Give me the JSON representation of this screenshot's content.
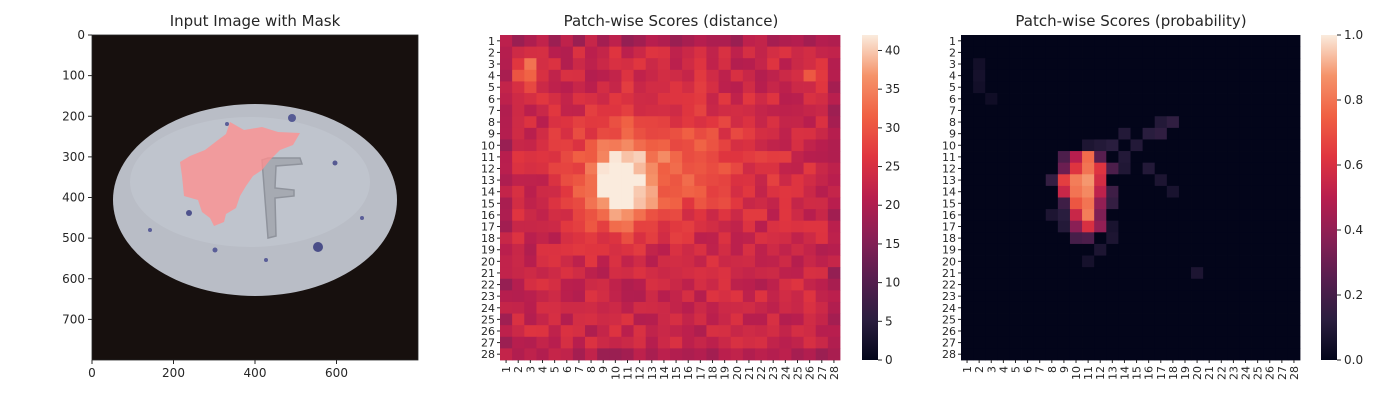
{
  "chart_data": [
    {
      "type": "image",
      "title": "Input Image with Mask",
      "xlim": [
        0,
        800
      ],
      "ylim": [
        800,
        0
      ],
      "xticks": [
        0,
        200,
        400,
        600
      ],
      "yticks": [
        0,
        100,
        200,
        300,
        400,
        500,
        600,
        700
      ],
      "colors": {
        "background": "#17100e",
        "pill": "#b8bcc4",
        "mask": "#ff8c8c",
        "speckle": "#4b4f8a"
      }
    },
    {
      "type": "heatmap",
      "title": "Patch-wise Scores (distance)",
      "rows": 28,
      "cols": 28,
      "row_labels": [
        "1",
        "2",
        "3",
        "4",
        "5",
        "6",
        "7",
        "8",
        "9",
        "10",
        "11",
        "12",
        "13",
        "14",
        "15",
        "16",
        "17",
        "18",
        "19",
        "20",
        "21",
        "22",
        "23",
        "24",
        "25",
        "26",
        "27",
        "28"
      ],
      "col_labels": [
        "1",
        "2",
        "3",
        "4",
        "5",
        "6",
        "7",
        "8",
        "9",
        "10",
        "11",
        "12",
        "13",
        "14",
        "15",
        "16",
        "17",
        "18",
        "19",
        "20",
        "21",
        "22",
        "23",
        "24",
        "25",
        "26",
        "27",
        "28"
      ],
      "colorbar": {
        "min": 0,
        "max": 42,
        "ticks": [
          0,
          5,
          10,
          15,
          20,
          25,
          30,
          35,
          40
        ]
      },
      "background_level": 23,
      "hotspots": [
        {
          "row": 13.5,
          "col": 10.5,
          "sigma_r": 2.5,
          "sigma_c": 2.0,
          "amp": 18
        },
        {
          "row": 11.5,
          "col": 14.0,
          "sigma_r": 3.5,
          "sigma_c": 5.5,
          "amp": 8
        },
        {
          "row": 3.5,
          "col": 3.0,
          "sigma_r": 1.0,
          "sigma_c": 0.9,
          "amp": 9
        },
        {
          "row": 4.0,
          "col": 26.0,
          "sigma_r": 1.0,
          "sigma_c": 1.0,
          "amp": 5
        }
      ]
    },
    {
      "type": "heatmap",
      "title": "Patch-wise Scores (probability)",
      "rows": 28,
      "cols": 28,
      "row_labels": [
        "1",
        "2",
        "3",
        "4",
        "5",
        "6",
        "7",
        "8",
        "9",
        "10",
        "11",
        "12",
        "13",
        "14",
        "15",
        "16",
        "17",
        "18",
        "19",
        "20",
        "21",
        "22",
        "23",
        "24",
        "25",
        "26",
        "27",
        "28"
      ],
      "col_labels": [
        "1",
        "2",
        "3",
        "4",
        "5",
        "6",
        "7",
        "8",
        "9",
        "10",
        "11",
        "12",
        "13",
        "14",
        "15",
        "16",
        "17",
        "18",
        "19",
        "20",
        "21",
        "22",
        "23",
        "24",
        "25",
        "26",
        "27",
        "28"
      ],
      "colorbar": {
        "min": 0,
        "max": 1,
        "ticks": [
          0.0,
          0.2,
          0.4,
          0.6,
          0.8,
          1.0
        ],
        "tick_labels": [
          "0.0",
          "0.2",
          "0.4",
          "0.6",
          "0.8",
          "1.0"
        ]
      },
      "cells": [
        {
          "row": 11,
          "col": 10,
          "value": 0.5
        },
        {
          "row": 11,
          "col": 11,
          "value": 0.78
        },
        {
          "row": 12,
          "col": 10,
          "value": 0.62
        },
        {
          "row": 12,
          "col": 11,
          "value": 0.8
        },
        {
          "row": 12,
          "col": 12,
          "value": 0.62
        },
        {
          "row": 13,
          "col": 9,
          "value": 0.65
        },
        {
          "row": 13,
          "col": 10,
          "value": 0.82
        },
        {
          "row": 13,
          "col": 11,
          "value": 0.88
        },
        {
          "row": 13,
          "col": 12,
          "value": 0.58
        },
        {
          "row": 14,
          "col": 9,
          "value": 0.55
        },
        {
          "row": 14,
          "col": 10,
          "value": 0.8
        },
        {
          "row": 14,
          "col": 11,
          "value": 0.85
        },
        {
          "row": 14,
          "col": 12,
          "value": 0.52
        },
        {
          "row": 15,
          "col": 10,
          "value": 0.72
        },
        {
          "row": 15,
          "col": 11,
          "value": 0.8
        },
        {
          "row": 15,
          "col": 12,
          "value": 0.4
        },
        {
          "row": 16,
          "col": 10,
          "value": 0.55
        },
        {
          "row": 16,
          "col": 11,
          "value": 0.82
        },
        {
          "row": 16,
          "col": 12,
          "value": 0.35
        },
        {
          "row": 17,
          "col": 10,
          "value": 0.38
        },
        {
          "row": 17,
          "col": 11,
          "value": 0.6
        },
        {
          "row": 17,
          "col": 12,
          "value": 0.4
        },
        {
          "row": 12,
          "col": 9,
          "value": 0.3
        },
        {
          "row": 11,
          "col": 9,
          "value": 0.22
        },
        {
          "row": 11,
          "col": 12,
          "value": 0.25
        },
        {
          "row": 12,
          "col": 13,
          "value": 0.22
        },
        {
          "row": 14,
          "col": 13,
          "value": 0.18
        },
        {
          "row": 15,
          "col": 13,
          "value": 0.15
        },
        {
          "row": 18,
          "col": 10,
          "value": 0.2
        },
        {
          "row": 18,
          "col": 11,
          "value": 0.22
        },
        {
          "row": 13,
          "col": 8,
          "value": 0.15
        },
        {
          "row": 15,
          "col": 9,
          "value": 0.18
        },
        {
          "row": 16,
          "col": 9,
          "value": 0.12
        },
        {
          "row": 10,
          "col": 12,
          "value": 0.1
        },
        {
          "row": 10,
          "col": 13,
          "value": 0.12
        },
        {
          "row": 9,
          "col": 14,
          "value": 0.1
        },
        {
          "row": 9,
          "col": 16,
          "value": 0.12
        },
        {
          "row": 9,
          "col": 17,
          "value": 0.14
        },
        {
          "row": 8,
          "col": 18,
          "value": 0.14
        },
        {
          "row": 8,
          "col": 17,
          "value": 0.1
        },
        {
          "row": 10,
          "col": 15,
          "value": 0.1
        },
        {
          "row": 12,
          "col": 16,
          "value": 0.1
        },
        {
          "row": 11,
          "col": 14,
          "value": 0.1
        },
        {
          "row": 13,
          "col": 17,
          "value": 0.08
        },
        {
          "row": 14,
          "col": 18,
          "value": 0.07
        },
        {
          "row": 18,
          "col": 13,
          "value": 0.08
        },
        {
          "row": 19,
          "col": 12,
          "value": 0.08
        },
        {
          "row": 20,
          "col": 11,
          "value": 0.06
        },
        {
          "row": 21,
          "col": 20,
          "value": 0.08
        },
        {
          "row": 3,
          "col": 2,
          "value": 0.05
        },
        {
          "row": 4,
          "col": 2,
          "value": 0.06
        },
        {
          "row": 5,
          "col": 2,
          "value": 0.05
        },
        {
          "row": 6,
          "col": 3,
          "value": 0.04
        },
        {
          "row": 16,
          "col": 8,
          "value": 0.08
        },
        {
          "row": 17,
          "col": 9,
          "value": 0.1
        },
        {
          "row": 12,
          "col": 14,
          "value": 0.09
        },
        {
          "row": 10,
          "col": 11,
          "value": 0.08
        },
        {
          "row": 17,
          "col": 13,
          "value": 0.07
        }
      ],
      "default_value": 0.0
    }
  ]
}
